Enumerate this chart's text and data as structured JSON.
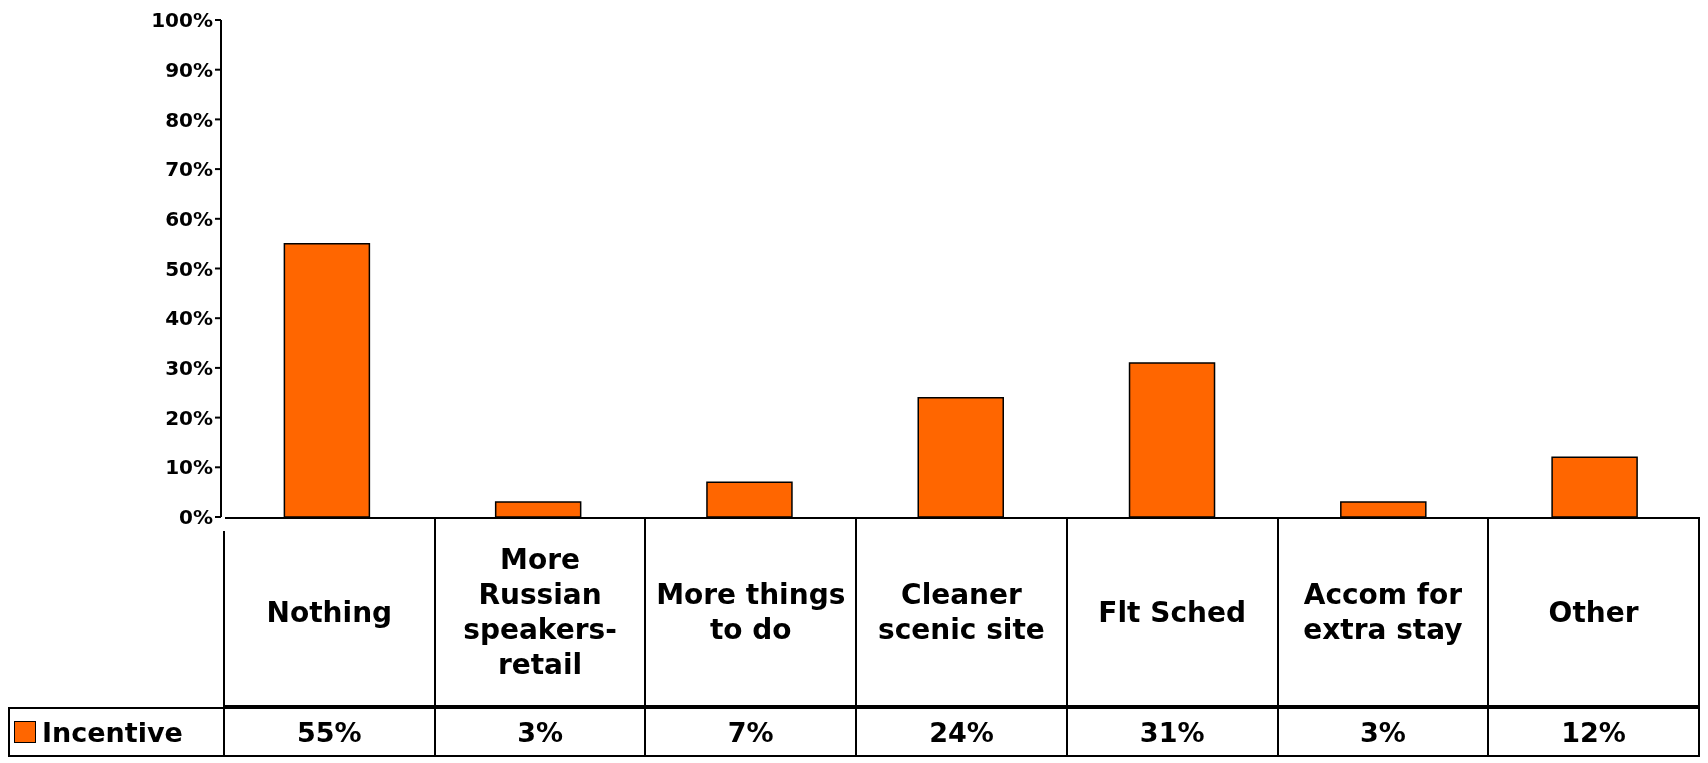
{
  "chart_data": {
    "type": "bar",
    "categories": [
      "Nothing",
      "More Russian speakers-retail",
      "More things to do",
      "Cleaner scenic site",
      "Flt Sched",
      "Accom for extra stay",
      "Other"
    ],
    "series": [
      {
        "name": "Incentive",
        "color": "#ff6600",
        "values": [
          55,
          3,
          7,
          24,
          31,
          3,
          12
        ],
        "value_labels": [
          "55%",
          "3%",
          "7%",
          "24%",
          "31%",
          "3%",
          "12%"
        ]
      }
    ],
    "ylim": [
      0,
      100
    ],
    "yticks": [
      {
        "value": 0,
        "label": "0%"
      },
      {
        "value": 10,
        "label": "10%"
      },
      {
        "value": 20,
        "label": "20%"
      },
      {
        "value": 30,
        "label": "30%"
      },
      {
        "value": 40,
        "label": "40%"
      },
      {
        "value": 50,
        "label": "50%"
      },
      {
        "value": 60,
        "label": "60%"
      },
      {
        "value": 70,
        "label": "70%"
      },
      {
        "value": 80,
        "label": "80%"
      },
      {
        "value": 90,
        "label": "90%"
      },
      {
        "value": 100,
        "label": "100%"
      }
    ],
    "grid": false,
    "legend": "bottom left"
  }
}
